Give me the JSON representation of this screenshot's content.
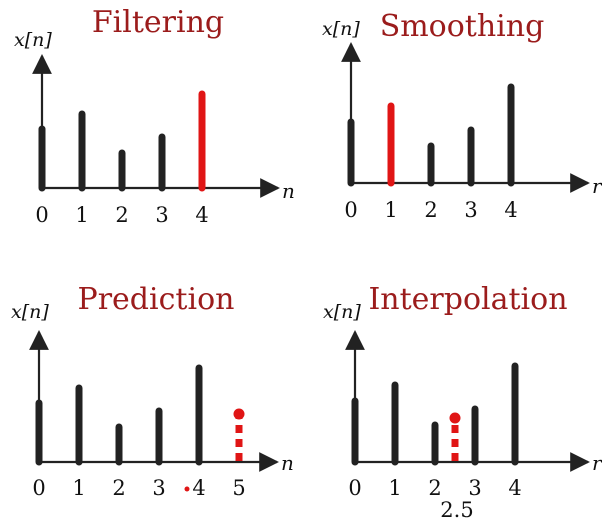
{
  "labels": {
    "ylabel": "x[n]",
    "xlabel": "n",
    "cropped_xlabel": "r"
  },
  "colors": {
    "stem": "#222222",
    "highlight": "#e01515",
    "title": "#9b1c1c"
  },
  "chart_data": [
    {
      "type": "stem",
      "title": "Filtering",
      "ticks": [
        "0",
        "1",
        "2",
        "3",
        "4"
      ],
      "xlabel": "n",
      "samples": [
        {
          "n": 0,
          "value": 0.59,
          "style": "normal"
        },
        {
          "n": 1,
          "value": 0.74,
          "style": "normal"
        },
        {
          "n": 2,
          "value": 0.35,
          "style": "normal"
        },
        {
          "n": 3,
          "value": 0.51,
          "style": "normal"
        },
        {
          "n": 4,
          "value": 0.94,
          "style": "highlight"
        }
      ]
    },
    {
      "type": "stem",
      "title": "Smoothing",
      "ticks": [
        "0",
        "1",
        "2",
        "3",
        "4"
      ],
      "xlabel": "r",
      "samples": [
        {
          "n": 0,
          "value": 0.61,
          "style": "normal"
        },
        {
          "n": 1,
          "value": 0.77,
          "style": "highlight"
        },
        {
          "n": 2,
          "value": 0.37,
          "style": "normal"
        },
        {
          "n": 3,
          "value": 0.53,
          "style": "normal"
        },
        {
          "n": 4,
          "value": 0.96,
          "style": "normal"
        }
      ]
    },
    {
      "type": "stem",
      "title": "Prediction",
      "ticks": [
        "0",
        "1",
        "2",
        "3",
        "4",
        "5"
      ],
      "xlabel": "n",
      "samples": [
        {
          "n": 0,
          "value": 0.59,
          "style": "normal"
        },
        {
          "n": 1,
          "value": 0.74,
          "style": "normal"
        },
        {
          "n": 2,
          "value": 0.35,
          "style": "normal"
        },
        {
          "n": 3,
          "value": 0.51,
          "style": "normal"
        },
        {
          "n": 4,
          "value": 0.94,
          "style": "normal"
        },
        {
          "n": 5,
          "value": 0.48,
          "style": "dashed"
        }
      ]
    },
    {
      "type": "stem",
      "title": "Interpolation",
      "ticks": [
        "0",
        "1",
        "2",
        "3",
        "4"
      ],
      "xlabel": "r",
      "extra_tick": "2.5",
      "samples": [
        {
          "n": 0,
          "value": 0.61,
          "style": "normal"
        },
        {
          "n": 1,
          "value": 0.77,
          "style": "normal"
        },
        {
          "n": 2,
          "value": 0.37,
          "style": "normal"
        },
        {
          "n": 2.5,
          "value": 0.44,
          "style": "dashed"
        },
        {
          "n": 3,
          "value": 0.53,
          "style": "normal"
        },
        {
          "n": 4,
          "value": 0.96,
          "style": "normal"
        }
      ]
    }
  ]
}
